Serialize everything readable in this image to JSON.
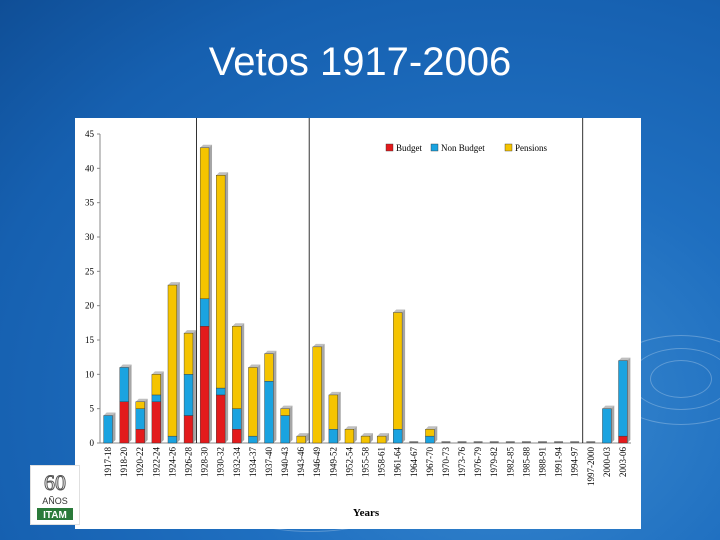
{
  "slide": {
    "title": "Vetos 1917-2006"
  },
  "logo": {
    "text_top": "60",
    "text_mid": "AÑOS",
    "text_bottom": "ITAM"
  },
  "chart_data": {
    "type": "bar",
    "stacked": true,
    "title": "",
    "xlabel": "Years",
    "ylabel": "",
    "ylim": [
      0,
      45
    ],
    "yticks": [
      0,
      5,
      10,
      15,
      20,
      25,
      30,
      35,
      40,
      45
    ],
    "legend_position": "top-right",
    "categories": [
      "1917-18",
      "1918-20",
      "1920-22",
      "1922-24",
      "1924-26",
      "1926-28",
      "1928-30",
      "1930-32",
      "1932-34",
      "1934-37",
      "1937-40",
      "1940-43",
      "1943-46",
      "1946-49",
      "1949-52",
      "1952-54",
      "1955-58",
      "1958-61",
      "1961-64",
      "1964-67",
      "1967-70",
      "1970-73",
      "1973-76",
      "1976-79",
      "1979-82",
      "1982-85",
      "1985-88",
      "1988-91",
      "1991-94",
      "1994-97",
      "1997-2000",
      "2000-03",
      "2003-06"
    ],
    "series": [
      {
        "name": "Budget",
        "color": "#e31a1c",
        "values": [
          0,
          6,
          2,
          6,
          0,
          4,
          17,
          7,
          2,
          0,
          0,
          0,
          0,
          0,
          0,
          0,
          0,
          0,
          0,
          0,
          0,
          0,
          0,
          0,
          0,
          0,
          0,
          0,
          0,
          0,
          0,
          0,
          1
        ]
      },
      {
        "name": "Non Budget",
        "color": "#1aa3e0",
        "values": [
          4,
          5,
          3,
          1,
          1,
          6,
          4,
          1,
          3,
          1,
          9,
          4,
          0,
          0,
          2,
          0,
          0,
          0,
          2,
          0,
          1,
          0,
          0,
          0,
          0,
          0,
          0,
          0,
          0,
          0,
          0,
          5,
          11
        ]
      },
      {
        "name": "Pensions",
        "color": "#f5c400",
        "values": [
          0,
          0,
          1,
          3,
          22,
          6,
          22,
          31,
          12,
          10,
          4,
          1,
          1,
          14,
          5,
          2,
          1,
          1,
          17,
          0,
          1,
          0,
          0,
          0,
          0,
          0,
          0,
          0,
          0,
          0,
          0,
          0,
          0
        ]
      }
    ],
    "vertical_markers_after": [
      "1926-28",
      "1943-46",
      "1994-97"
    ]
  }
}
